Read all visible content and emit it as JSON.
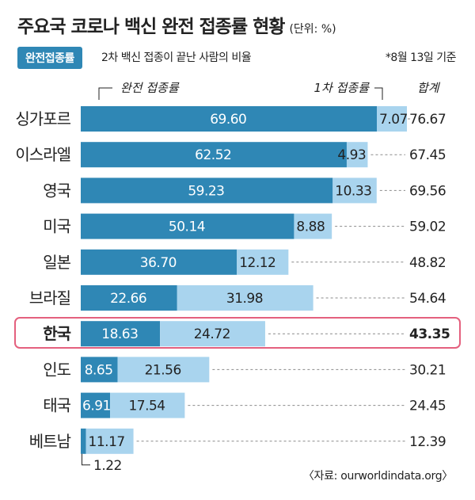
{
  "header": {
    "title": "주요국 코로나 백신 완전 접종률 현황",
    "unit": "(단위: %)",
    "badge": "완전접종률",
    "subtitle": "2차 백신 접종이 끝난 사람의 비율",
    "basis": "*8월 13일 기준",
    "source": "〈자료: ourworldindata.org〉"
  },
  "chart_data": {
    "type": "bar",
    "orientation": "horizontal",
    "stacked": true,
    "categories": [
      "싱가포르",
      "이스라엘",
      "영국",
      "미국",
      "일본",
      "브라질",
      "한국",
      "인도",
      "태국",
      "베트남"
    ],
    "series": [
      {
        "name": "완전 접종률",
        "color": "#2f87b5",
        "values": [
          69.6,
          62.52,
          59.23,
          50.14,
          36.7,
          22.66,
          18.63,
          8.65,
          6.91,
          1.22
        ],
        "labels": [
          "69.60",
          "62.52",
          "59.23",
          "50.14",
          "36.70",
          "22.66",
          "18.63",
          "8.65",
          "6.91",
          "1.22"
        ]
      },
      {
        "name": "1차 접종률",
        "color": "#a9d4ee",
        "values": [
          7.07,
          4.93,
          10.33,
          8.88,
          12.12,
          31.98,
          24.72,
          21.56,
          17.54,
          11.17
        ],
        "labels": [
          "7.07",
          "4.93",
          "10.33",
          "8.88",
          "12.12",
          "31.98",
          "24.72",
          "21.56",
          "17.54",
          "11.17"
        ]
      }
    ],
    "total_label": "합계",
    "totals": [
      "76.67",
      "67.45",
      "69.56",
      "59.02",
      "48.82",
      "54.64",
      "43.35",
      "30.21",
      "24.45",
      "12.39"
    ],
    "highlight": "한국",
    "xlim": [
      0,
      76.67
    ]
  }
}
